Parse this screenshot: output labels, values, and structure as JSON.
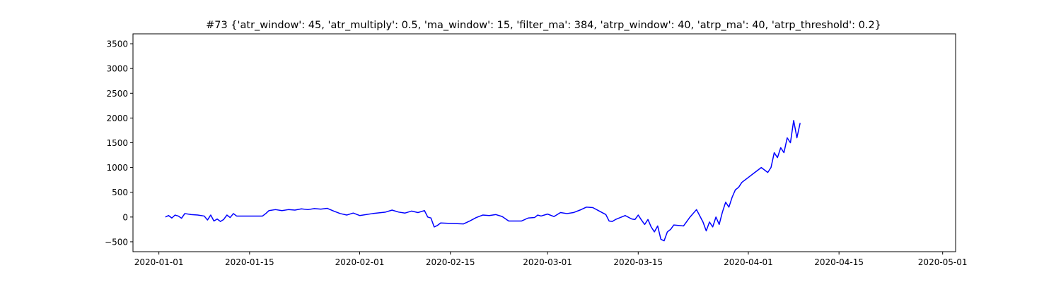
{
  "chart_data": {
    "type": "line",
    "title": "#73 {'atr_window': 45, 'atr_multiply': 0.5, 'ma_window': 15, 'filter_ma': 384, 'atrp_window': 40, 'atrp_ma': 40, 'atrp_threshold': 0.2}",
    "xlabel": "",
    "ylabel": "",
    "x_axis": "date",
    "xlim": [
      "2019-12-28",
      "2020-05-03"
    ],
    "ylim": [
      -700,
      3700
    ],
    "x_ticks": [
      "2020-01-01",
      "2020-01-15",
      "2020-02-01",
      "2020-02-15",
      "2020-03-01",
      "2020-03-15",
      "2020-04-01",
      "2020-04-15",
      "2020-05-01"
    ],
    "y_ticks": [
      -500,
      0,
      500,
      1000,
      1500,
      2000,
      2500,
      3000,
      3500
    ],
    "grid": false,
    "legend": "none",
    "line_color": "#0000ff",
    "series": [
      {
        "points": [
          [
            "2020-01-02",
            0
          ],
          [
            "2020-01-02.5",
            30
          ],
          [
            "2020-01-03",
            -20
          ],
          [
            "2020-01-03.5",
            40
          ],
          [
            "2020-01-04",
            20
          ],
          [
            "2020-01-04.5",
            -25
          ],
          [
            "2020-01-05",
            70
          ],
          [
            "2020-01-06",
            50
          ],
          [
            "2020-01-07",
            40
          ],
          [
            "2020-01-08",
            20
          ],
          [
            "2020-01-08.5",
            -60
          ],
          [
            "2020-01-09",
            40
          ],
          [
            "2020-01-09.5",
            -80
          ],
          [
            "2020-01-10",
            -40
          ],
          [
            "2020-01-10.5",
            -90
          ],
          [
            "2020-01-11",
            -50
          ],
          [
            "2020-01-11.5",
            40
          ],
          [
            "2020-01-12",
            -10
          ],
          [
            "2020-01-12.5",
            70
          ],
          [
            "2020-01-13",
            20
          ],
          [
            "2020-01-17",
            20
          ],
          [
            "2020-01-17.5",
            70
          ],
          [
            "2020-01-18",
            130
          ],
          [
            "2020-01-19",
            150
          ],
          [
            "2020-01-20",
            130
          ],
          [
            "2020-01-21",
            150
          ],
          [
            "2020-01-22",
            140
          ],
          [
            "2020-01-23",
            165
          ],
          [
            "2020-01-24",
            150
          ],
          [
            "2020-01-25",
            170
          ],
          [
            "2020-01-26",
            160
          ],
          [
            "2020-01-27",
            175
          ],
          [
            "2020-01-28",
            120
          ],
          [
            "2020-01-29",
            70
          ],
          [
            "2020-01-30",
            40
          ],
          [
            "2020-01-31",
            80
          ],
          [
            "2020-02-01",
            30
          ],
          [
            "2020-02-03",
            70
          ],
          [
            "2020-02-05",
            100
          ],
          [
            "2020-02-06",
            140
          ],
          [
            "2020-02-07",
            100
          ],
          [
            "2020-02-08",
            80
          ],
          [
            "2020-02-09",
            120
          ],
          [
            "2020-02-10",
            90
          ],
          [
            "2020-02-11",
            130
          ],
          [
            "2020-02-11.5",
            0
          ],
          [
            "2020-02-12",
            -20
          ],
          [
            "2020-02-12.5",
            -200
          ],
          [
            "2020-02-13",
            -170
          ],
          [
            "2020-02-13.5",
            -120
          ],
          [
            "2020-02-17",
            -140
          ],
          [
            "2020-02-18",
            -80
          ],
          [
            "2020-02-19",
            -10
          ],
          [
            "2020-02-20",
            40
          ],
          [
            "2020-02-21",
            30
          ],
          [
            "2020-02-22",
            50
          ],
          [
            "2020-02-23",
            10
          ],
          [
            "2020-02-24",
            -80
          ],
          [
            "2020-02-26",
            -80
          ],
          [
            "2020-02-27",
            -20
          ],
          [
            "2020-02-28",
            -10
          ],
          [
            "2020-02-28.5",
            40
          ],
          [
            "2020-02-29",
            20
          ],
          [
            "2020-03-01",
            60
          ],
          [
            "2020-03-02",
            10
          ],
          [
            "2020-03-03",
            90
          ],
          [
            "2020-03-04",
            70
          ],
          [
            "2020-03-05",
            90
          ],
          [
            "2020-03-06",
            140
          ],
          [
            "2020-03-07",
            200
          ],
          [
            "2020-03-08",
            190
          ],
          [
            "2020-03-09",
            120
          ],
          [
            "2020-03-10",
            50
          ],
          [
            "2020-03-10.5",
            -80
          ],
          [
            "2020-03-11",
            -90
          ],
          [
            "2020-03-11.5",
            -50
          ],
          [
            "2020-03-13",
            30
          ],
          [
            "2020-03-14",
            -40
          ],
          [
            "2020-03-14.5",
            -50
          ],
          [
            "2020-03-15",
            40
          ],
          [
            "2020-03-15.5",
            -60
          ],
          [
            "2020-03-16",
            -150
          ],
          [
            "2020-03-16.5",
            -50
          ],
          [
            "2020-03-17",
            -200
          ],
          [
            "2020-03-17.5",
            -300
          ],
          [
            "2020-03-18",
            -180
          ],
          [
            "2020-03-18.5",
            -450
          ],
          [
            "2020-03-19",
            -480
          ],
          [
            "2020-03-19.5",
            -300
          ],
          [
            "2020-03-20",
            -250
          ],
          [
            "2020-03-20.5",
            -160
          ],
          [
            "2020-03-22",
            -180
          ],
          [
            "2020-03-23",
            0
          ],
          [
            "2020-03-24",
            150
          ],
          [
            "2020-03-25",
            -100
          ],
          [
            "2020-03-25.5",
            -280
          ],
          [
            "2020-03-26",
            -100
          ],
          [
            "2020-03-26.5",
            -200
          ],
          [
            "2020-03-27",
            0
          ],
          [
            "2020-03-27.5",
            -150
          ],
          [
            "2020-03-28",
            100
          ],
          [
            "2020-03-28.5",
            300
          ],
          [
            "2020-03-29",
            200
          ],
          [
            "2020-03-29.5",
            400
          ],
          [
            "2020-03-30",
            550
          ],
          [
            "2020-03-30.5",
            600
          ],
          [
            "2020-03-31",
            700
          ],
          [
            "2020-04-01",
            800
          ],
          [
            "2020-04-02",
            900
          ],
          [
            "2020-04-03",
            1000
          ],
          [
            "2020-04-04",
            900
          ],
          [
            "2020-04-04.5",
            1000
          ],
          [
            "2020-04-05",
            1300
          ],
          [
            "2020-04-05.5",
            1200
          ],
          [
            "2020-04-06",
            1400
          ],
          [
            "2020-04-06.5",
            1300
          ],
          [
            "2020-04-07",
            1600
          ],
          [
            "2020-04-07.5",
            1500
          ],
          [
            "2020-04-08",
            1950
          ],
          [
            "2020-04-08.5",
            1600
          ],
          [
            "2020-04-09",
            1900
          ]
        ]
      }
    ]
  }
}
